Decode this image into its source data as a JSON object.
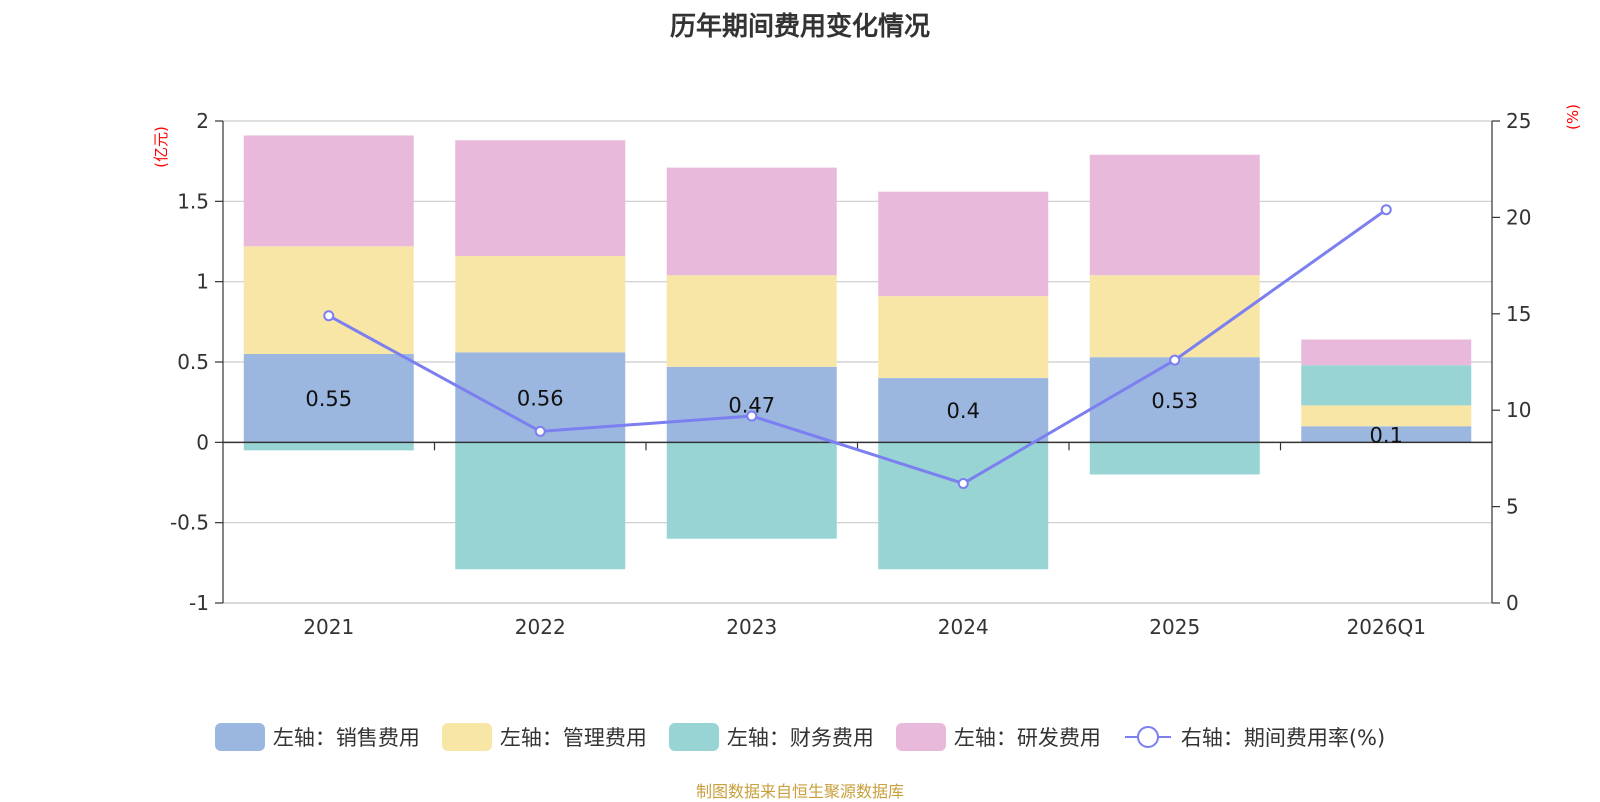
{
  "chart_data": {
    "type": "bar",
    "title": "历年期间费用变化情况",
    "categories": [
      "2021",
      "2022",
      "2023",
      "2024",
      "2025",
      "2026Q1"
    ],
    "left_axis": {
      "unit": "(亿元)",
      "ylim": [
        -1,
        2
      ],
      "ticks": [
        -1,
        -0.5,
        0,
        0.5,
        1,
        1.5,
        2
      ],
      "tick_labels": [
        "-1",
        "-0.5",
        "0",
        "0.5",
        "1",
        "1.5",
        "2"
      ]
    },
    "right_axis": {
      "unit": "(%)",
      "ylim": [
        0,
        25
      ],
      "ticks": [
        0,
        5,
        10,
        15,
        20,
        25
      ],
      "tick_labels": [
        "0",
        "5",
        "10",
        "15",
        "20",
        "25"
      ]
    },
    "series": [
      {
        "name": "左轴：销售费用",
        "axis": "left",
        "kind": "bar",
        "color": "#9bb7e0",
        "values": [
          0.55,
          0.56,
          0.47,
          0.4,
          0.53,
          0.1
        ],
        "labels": [
          "0.55",
          "0.56",
          "0.47",
          "0.4",
          "0.53",
          "0.1"
        ]
      },
      {
        "name": "左轴：管理费用",
        "axis": "left",
        "kind": "bar",
        "color": "#f8e6a6",
        "values": [
          0.67,
          0.6,
          0.57,
          0.51,
          0.51,
          0.13
        ]
      },
      {
        "name": "左轴：财务费用",
        "axis": "left",
        "kind": "bar",
        "color": "#98d4d4",
        "values": [
          -0.05,
          -0.79,
          -0.6,
          -0.79,
          -0.2,
          0.25
        ]
      },
      {
        "name": "左轴：研发费用",
        "axis": "left",
        "kind": "bar",
        "color": "#e8b9da",
        "values": [
          0.69,
          0.72,
          0.67,
          0.65,
          0.75,
          0.16
        ]
      },
      {
        "name": "右轴：期间费用率(%)",
        "axis": "right",
        "kind": "line",
        "color": "#7b7fef",
        "values": [
          14.9,
          8.9,
          9.7,
          6.2,
          12.6,
          20.4
        ]
      }
    ],
    "legend_position": "bottom",
    "grid": true
  },
  "footer": {
    "source": "制图数据来自恒生聚源数据库"
  }
}
